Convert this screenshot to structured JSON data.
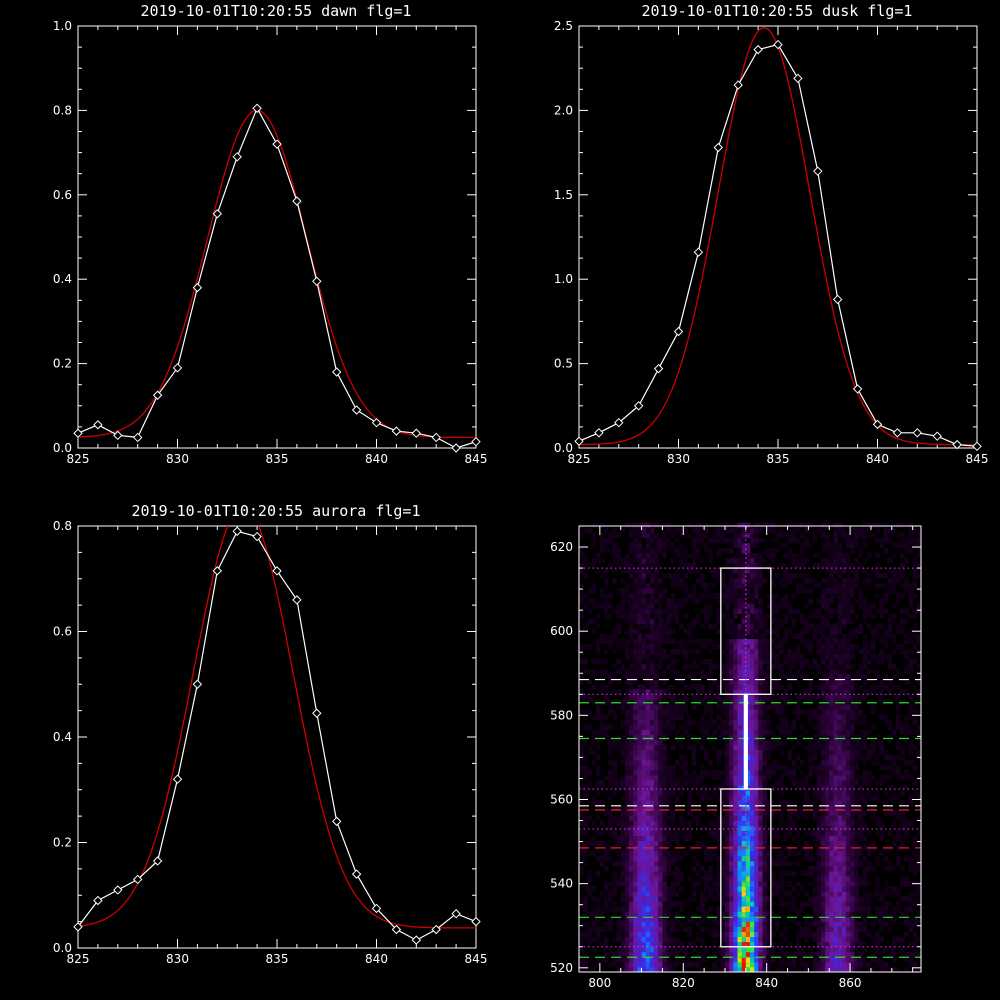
{
  "colors": {
    "background": "#000000",
    "axes": "#ffffff",
    "observed": "#ffffff",
    "fit": "#cc0000",
    "dash_white": "#ffffff",
    "dash_green": "#22dd22",
    "dash_red": "#dd2222",
    "dotted_magenta": "#cc44cc"
  },
  "chart_data": [
    {
      "type": "line",
      "title": "2019-10-01T10:20:55 dawn flg=1",
      "xlabel": "",
      "ylabel": "",
      "xlim": [
        825,
        845
      ],
      "ylim": [
        0,
        1.0
      ],
      "xticks": [
        "825",
        "830",
        "835",
        "840",
        "845"
      ],
      "yticks": [
        "0.0",
        "0.2",
        "0.4",
        "0.6",
        "0.8",
        "1.0"
      ],
      "series": [
        {
          "x": [
            825,
            826,
            827,
            828,
            829,
            830,
            831,
            832,
            833,
            834,
            835,
            836,
            837,
            838,
            839,
            840,
            841,
            842,
            843,
            844,
            845
          ],
          "values": [
            0.035,
            0.055,
            0.03,
            0.025,
            0.125,
            0.19,
            0.38,
            0.555,
            0.69,
            0.805,
            0.72,
            0.585,
            0.395,
            0.18,
            0.09,
            0.06,
            0.04,
            0.035,
            0.025,
            0.0,
            0.015
          ],
          "markers": "diamond"
        },
        {
          "fit": {
            "base": 0.025,
            "amp": 0.775,
            "center": 834.0,
            "sigma": 2.5
          }
        }
      ]
    },
    {
      "type": "line",
      "title": "2019-10-01T10:20:55 dusk flg=1",
      "xlabel": "",
      "ylabel": "",
      "xlim": [
        825,
        845
      ],
      "ylim": [
        0,
        2.5
      ],
      "xticks": [
        "825",
        "830",
        "835",
        "840",
        "845"
      ],
      "yticks": [
        "0.0",
        "0.5",
        "1.0",
        "1.5",
        "2.0",
        "2.5"
      ],
      "series": [
        {
          "x": [
            825,
            826,
            827,
            828,
            829,
            830,
            831,
            832,
            833,
            834,
            835,
            836,
            837,
            838,
            839,
            840,
            841,
            842,
            843,
            844,
            845
          ],
          "values": [
            0.04,
            0.09,
            0.15,
            0.25,
            0.47,
            0.69,
            1.16,
            1.78,
            2.15,
            2.36,
            2.39,
            2.19,
            1.64,
            0.88,
            0.35,
            0.14,
            0.09,
            0.09,
            0.07,
            0.02,
            0.01
          ],
          "markers": "diamond"
        },
        {
          "fit": {
            "base": 0.02,
            "amp": 2.47,
            "center": 834.3,
            "sigma": 2.3
          }
        }
      ]
    },
    {
      "type": "line",
      "title": "2019-10-01T10:20:55 aurora flg=1",
      "xlabel": "",
      "ylabel": "",
      "xlim": [
        825,
        845
      ],
      "ylim": [
        0,
        0.8
      ],
      "xticks": [
        "825",
        "830",
        "835",
        "840",
        "845"
      ],
      "yticks": [
        "0.0",
        "0.2",
        "0.4",
        "0.6",
        "0.8"
      ],
      "series": [
        {
          "x": [
            825,
            826,
            827,
            828,
            829,
            830,
            831,
            832,
            833,
            834,
            835,
            836,
            837,
            838,
            839,
            840,
            841,
            842,
            843,
            844,
            845
          ],
          "values": [
            0.04,
            0.09,
            0.11,
            0.13,
            0.165,
            0.32,
            0.5,
            0.715,
            0.79,
            0.78,
            0.715,
            0.66,
            0.445,
            0.24,
            0.14,
            0.075,
            0.035,
            0.015,
            0.035,
            0.065,
            0.05
          ],
          "markers": "diamond"
        },
        {
          "fit": {
            "base": 0.038,
            "amp": 0.8,
            "center": 833.3,
            "sigma": 2.5
          }
        }
      ]
    },
    {
      "type": "heatmap",
      "title": "",
      "xlabel": "",
      "ylabel": "",
      "xlim": [
        795,
        877
      ],
      "ylim": [
        519,
        625
      ],
      "xticks": [
        "800",
        "820",
        "840",
        "860"
      ],
      "yticks": [
        "520",
        "540",
        "560",
        "580",
        "600",
        "620"
      ],
      "emission_columns": [
        {
          "x": 811,
          "width": 3.5,
          "y_top": 586,
          "peak": 0.55
        },
        {
          "x": 835,
          "width": 3.0,
          "y_top": 598,
          "peak": 1.0
        },
        {
          "x": 857,
          "width": 3.5,
          "y_top": 590,
          "peak": 0.35
        }
      ],
      "vertical_dotted_line_x": 835,
      "boxes": [
        {
          "x0": 829,
          "x1": 841,
          "y0": 585,
          "y1": 615
        },
        {
          "x0": 829,
          "x1": 841,
          "y0": 525,
          "y1": 562.5
        }
      ],
      "white_strip": {
        "x0": 834.5,
        "x1": 835.5,
        "y0": 562.5,
        "y1": 585
      },
      "hlines": [
        {
          "y": 615,
          "style": "dotted",
          "color": "magenta"
        },
        {
          "y": 588.5,
          "style": "dashed",
          "color": "white"
        },
        {
          "y": 585,
          "style": "dotted",
          "color": "magenta"
        },
        {
          "y": 583,
          "style": "dashed",
          "color": "green"
        },
        {
          "y": 574.5,
          "style": "dashed",
          "color": "green"
        },
        {
          "y": 562.5,
          "style": "dotted",
          "color": "magenta"
        },
        {
          "y": 558.5,
          "style": "dashed",
          "color": "white"
        },
        {
          "y": 557.5,
          "style": "dashed",
          "color": "red"
        },
        {
          "y": 553,
          "style": "dotted",
          "color": "magenta"
        },
        {
          "y": 548.5,
          "style": "dashed",
          "color": "red"
        },
        {
          "y": 532,
          "style": "dashed",
          "color": "green"
        },
        {
          "y": 525,
          "style": "dotted",
          "color": "magenta"
        },
        {
          "y": 522.5,
          "style": "dashed",
          "color": "green"
        }
      ]
    }
  ]
}
